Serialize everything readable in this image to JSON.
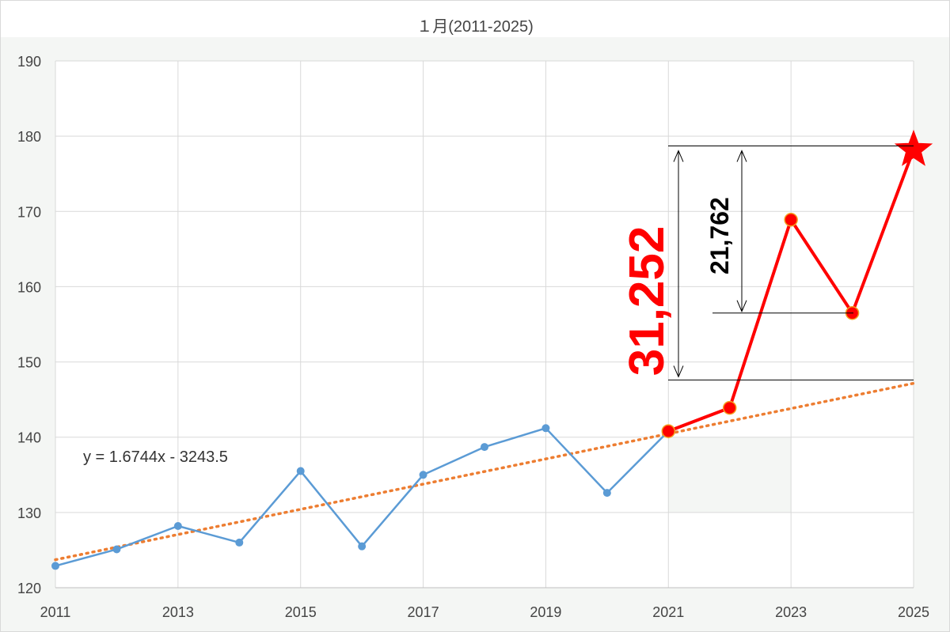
{
  "colors": {
    "blue_series": "#5b9bd5",
    "red_series": "#ff0000",
    "trend": "#ed7d31",
    "grid": "#d9d9d9",
    "plot_bg_band": "#f4f6f4"
  },
  "chart_data": {
    "type": "line",
    "title": "１月(2011-2025)",
    "xlabel": "",
    "ylabel": "",
    "xlim": [
      2011,
      2025
    ],
    "ylim": [
      120,
      190
    ],
    "x_ticks": [
      "2011",
      "2013",
      "2015",
      "2017",
      "2019",
      "2021",
      "2023",
      "2025"
    ],
    "y_ticks": [
      "120",
      "130",
      "140",
      "150",
      "160",
      "170",
      "180",
      "190"
    ],
    "grid": true,
    "series": [
      {
        "color": "#5b9bd5",
        "marker": "circle",
        "x": [
          2011,
          2012,
          2013,
          2014,
          2015,
          2016,
          2017,
          2018,
          2019,
          2020,
          2021
        ],
        "y": [
          122.9,
          125.1,
          128.2,
          126.0,
          135.5,
          125.5,
          135.0,
          138.7,
          141.2,
          132.6,
          140.8
        ]
      },
      {
        "color": "#ff0000",
        "marker": "circle",
        "x": [
          2021,
          2022,
          2023,
          2024
        ],
        "y": [
          140.8,
          143.9,
          168.9,
          156.5
        ]
      },
      {
        "color": "#ff0000",
        "marker": "star",
        "x": [
          2024,
          2025
        ],
        "y": [
          156.5,
          178.2
        ]
      }
    ],
    "trendline": {
      "color": "#ed7d31",
      "style": "dotted",
      "slope": 1.6744,
      "intercept": -3243.5,
      "x_range": [
        2011,
        2025
      ],
      "equation_label": "y = 1.6744x - 3243.5"
    },
    "annotations": {
      "total_diff_label": "31,252",
      "total_diff_from": 147.6,
      "total_diff_to": 178.7,
      "partial_diff_label": "21,762",
      "partial_diff_from": 156.5,
      "partial_diff_to": 178.7
    }
  }
}
